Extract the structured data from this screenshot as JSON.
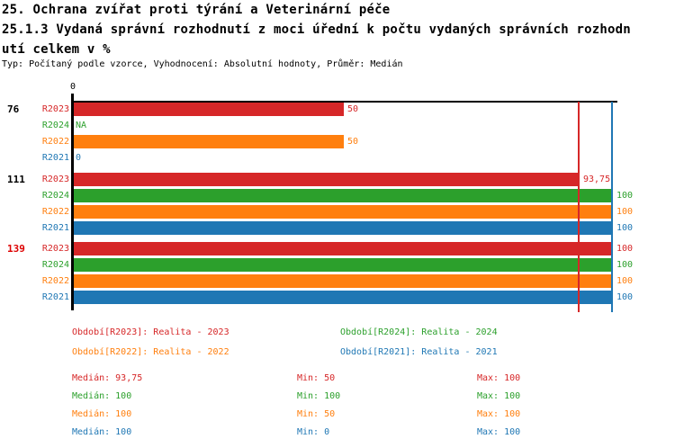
{
  "header": {
    "title_line1": "25. Ochrana zvířat proti týrání a Veterinární péče",
    "title_line2": "25.1.3 Vydaná správní rozhodnutí z moci úřední k počtu vydaných správních rozhodn",
    "title_line3": "utí celkem v %",
    "subtitle": "Typ: Počítaný podle vzorce, Vyhodnocení: Absolutní hodnoty, Průměr: Medián"
  },
  "colors": {
    "R2023": "#d62728",
    "R2024": "#2ca02c",
    "R2022": "#ff7f0e",
    "R2021": "#1f77b4",
    "highlight_group_label": "#dd0000",
    "normal_group_label": "#000000",
    "axis": "#000000"
  },
  "chart_data": {
    "type": "bar",
    "orientation": "horizontal",
    "unit": "%",
    "axis": {
      "tick_labels": [
        "0"
      ],
      "xlim": [
        0,
        101
      ]
    },
    "series_order": [
      "R2023",
      "R2024",
      "R2022",
      "R2021"
    ],
    "reference_lines": [
      {
        "name": "median-line-R2023",
        "value": 93.75,
        "series": "R2023"
      },
      {
        "name": "median-line-R2021",
        "value": 100,
        "series": "R2021"
      }
    ],
    "groups": [
      {
        "label": "76",
        "highlighted": false,
        "bars": [
          {
            "series": "R2023",
            "value": 50,
            "display": "50"
          },
          {
            "series": "R2024",
            "value": null,
            "display": "NA"
          },
          {
            "series": "R2022",
            "value": 50,
            "display": "50"
          },
          {
            "series": "R2021",
            "value": 0,
            "display": "0"
          }
        ]
      },
      {
        "label": "111",
        "highlighted": false,
        "bars": [
          {
            "series": "R2023",
            "value": 93.75,
            "display": "93,75"
          },
          {
            "series": "R2024",
            "value": 100,
            "display": "100"
          },
          {
            "series": "R2022",
            "value": 100,
            "display": "100"
          },
          {
            "series": "R2021",
            "value": 100,
            "display": "100"
          }
        ]
      },
      {
        "label": "139",
        "highlighted": true,
        "bars": [
          {
            "series": "R2023",
            "value": 100,
            "display": "100"
          },
          {
            "series": "R2024",
            "value": 100,
            "display": "100"
          },
          {
            "series": "R2022",
            "value": 100,
            "display": "100"
          },
          {
            "series": "R2021",
            "value": 100,
            "display": "100"
          }
        ]
      }
    ]
  },
  "legend": {
    "entries": [
      {
        "label": "Období[R2023]: Realita - 2023",
        "series": "R2023"
      },
      {
        "label": "Období[R2024]: Realita - 2024",
        "series": "R2024"
      },
      {
        "label": "Období[R2022]: Realita - 2022",
        "series": "R2022"
      },
      {
        "label": "Období[R2021]: Realita - 2021",
        "series": "R2021"
      }
    ]
  },
  "stats": {
    "rows": [
      {
        "series": "R2023",
        "median": "Medián: 93,75",
        "min": "Min: 50",
        "max": "Max: 100"
      },
      {
        "series": "R2024",
        "median": "Medián: 100",
        "min": "Min: 100",
        "max": "Max: 100"
      },
      {
        "series": "R2022",
        "median": "Medián: 100",
        "min": "Min: 50",
        "max": "Max: 100"
      },
      {
        "series": "R2021",
        "median": "Medián: 100",
        "min": "Min: 0",
        "max": "Max: 100"
      }
    ]
  }
}
